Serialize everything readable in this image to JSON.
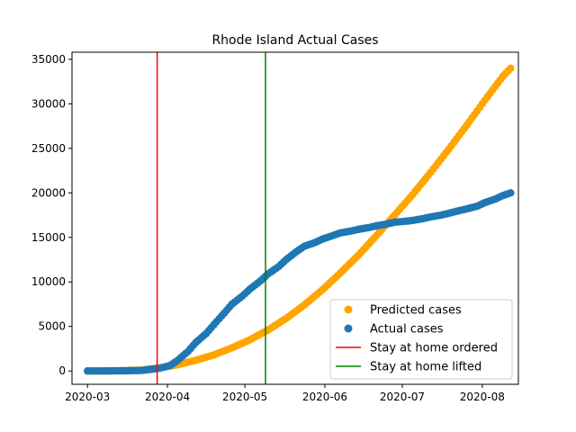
{
  "chart_data": {
    "type": "scatter",
    "title": "Rhode Island Actual Cases",
    "xlabel": "",
    "ylabel": "",
    "x_type": "date",
    "xlim": [
      "2020-02-24",
      "2020-08-15"
    ],
    "ylim": [
      -1500,
      35800
    ],
    "x_ticks": [
      "2020-03-01",
      "2020-04-01",
      "2020-05-01",
      "2020-06-01",
      "2020-07-01",
      "2020-08-01"
    ],
    "x_tick_labels": [
      "2020-03",
      "2020-04",
      "2020-05",
      "2020-06",
      "2020-07",
      "2020-08"
    ],
    "y_ticks": [
      0,
      5000,
      10000,
      15000,
      20000,
      25000,
      30000,
      35000
    ],
    "y_tick_labels": [
      "0",
      "5000",
      "10000",
      "15000",
      "20000",
      "25000",
      "30000",
      "35000"
    ],
    "grid": false,
    "legend_position": "lower-right",
    "series": [
      {
        "name": "Predicted cases",
        "color": "#ffa500",
        "marker": "circle",
        "x": [
          "2020-03-01",
          "2020-03-08",
          "2020-03-15",
          "2020-03-22",
          "2020-03-29",
          "2020-04-05",
          "2020-04-12",
          "2020-04-19",
          "2020-04-26",
          "2020-05-03",
          "2020-05-10",
          "2020-05-17",
          "2020-05-24",
          "2020-05-31",
          "2020-06-07",
          "2020-06-14",
          "2020-06-21",
          "2020-06-28",
          "2020-07-05",
          "2020-07-12",
          "2020-07-19",
          "2020-07-26",
          "2020-08-02",
          "2020-08-09",
          "2020-08-12"
        ],
        "y": [
          0,
          0,
          20,
          100,
          350,
          700,
          1200,
          1800,
          2600,
          3500,
          4600,
          5900,
          7400,
          9100,
          11000,
          13000,
          15200,
          17500,
          19800,
          22300,
          24900,
          27600,
          30400,
          33100,
          34000
        ]
      },
      {
        "name": "Actual cases",
        "color": "#1f77b4",
        "marker": "circle",
        "x": [
          "2020-03-01",
          "2020-03-08",
          "2020-03-15",
          "2020-03-22",
          "2020-03-29",
          "2020-04-02",
          "2020-04-05",
          "2020-04-09",
          "2020-04-12",
          "2020-04-16",
          "2020-04-19",
          "2020-04-23",
          "2020-04-26",
          "2020-04-30",
          "2020-05-03",
          "2020-05-07",
          "2020-05-10",
          "2020-05-14",
          "2020-05-17",
          "2020-05-21",
          "2020-05-24",
          "2020-05-28",
          "2020-05-31",
          "2020-06-04",
          "2020-06-07",
          "2020-06-11",
          "2020-06-14",
          "2020-06-18",
          "2020-06-21",
          "2020-06-25",
          "2020-06-28",
          "2020-07-02",
          "2020-07-05",
          "2020-07-09",
          "2020-07-12",
          "2020-07-16",
          "2020-07-19",
          "2020-07-23",
          "2020-07-26",
          "2020-07-30",
          "2020-08-02",
          "2020-08-06",
          "2020-08-09",
          "2020-08-12"
        ],
        "y": [
          0,
          0,
          20,
          50,
          300,
          600,
          1200,
          2200,
          3200,
          4200,
          5200,
          6500,
          7500,
          8400,
          9200,
          10100,
          10900,
          11700,
          12500,
          13400,
          14000,
          14400,
          14800,
          15200,
          15500,
          15700,
          15900,
          16100,
          16300,
          16500,
          16700,
          16800,
          16900,
          17100,
          17300,
          17500,
          17700,
          18000,
          18200,
          18500,
          18900,
          19300,
          19700,
          20000
        ]
      }
    ],
    "vlines": [
      {
        "name": "Stay at home ordered",
        "date": "2020-03-28",
        "color": "#ff0000"
      },
      {
        "name": "Stay at home lifted",
        "date": "2020-05-09",
        "color": "#008000"
      }
    ]
  }
}
